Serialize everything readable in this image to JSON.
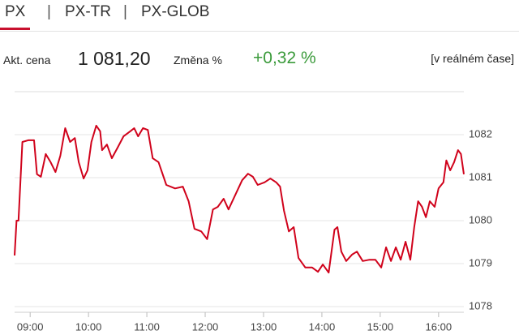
{
  "tabs": [
    "PX",
    "PX-TR",
    "PX-GLOB"
  ],
  "info": {
    "price_label": "Akt. cena",
    "price": "1 081,20",
    "change_label": "Změna %",
    "change": "+0,32 %",
    "realtime": "[v reálném čase]"
  },
  "chart_data": {
    "type": "line",
    "color": "#d0021b",
    "x": [
      "08:44",
      "08:46",
      "08:48",
      "08:52",
      "08:58",
      "09:04",
      "09:07",
      "09:11",
      "09:16",
      "09:21",
      "09:26",
      "09:31",
      "09:36",
      "09:41",
      "09:46",
      "09:50",
      "09:55",
      "09:59",
      "10:03",
      "10:08",
      "10:12",
      "10:14",
      "10:19",
      "10:24",
      "10:30",
      "10:36",
      "10:43",
      "10:47",
      "10:51",
      "10:56",
      "11:01",
      "11:06",
      "11:12",
      "11:20",
      "11:29",
      "11:37",
      "11:43",
      "11:49",
      "11:56",
      "12:02",
      "12:08",
      "12:13",
      "12:19",
      "12:24",
      "12:31",
      "12:38",
      "12:44",
      "12:49",
      "12:54",
      "13:01",
      "13:07",
      "13:13",
      "13:17",
      "13:21",
      "13:26",
      "13:31",
      "13:36",
      "13:43",
      "13:50",
      "13:56",
      "14:01",
      "14:07",
      "14:13",
      "14:16",
      "14:20",
      "14:25",
      "14:31",
      "14:36",
      "14:42",
      "14:49",
      "14:55",
      "15:01",
      "15:06",
      "15:11",
      "15:16",
      "15:21",
      "15:26",
      "15:31",
      "15:35",
      "15:39",
      "15:43",
      "15:47",
      "15:51",
      "15:56",
      "16:00",
      "16:05",
      "16:08",
      "16:12",
      "16:16",
      "16:20",
      "16:23",
      "16:26"
    ],
    "values": [
      1079.19,
      1080,
      1080,
      1081.83,
      1081.87,
      1081.87,
      1081.08,
      1081.02,
      1081.55,
      1081.36,
      1081.13,
      1081.51,
      1082.15,
      1081.83,
      1081.92,
      1081.36,
      1080.98,
      1081.17,
      1081.83,
      1082.21,
      1082.08,
      1081.64,
      1081.77,
      1081.45,
      1081.7,
      1081.96,
      1082.08,
      1082.15,
      1081.96,
      1082.15,
      1082.11,
      1081.45,
      1081.36,
      1080.83,
      1080.75,
      1080.79,
      1080.45,
      1079.81,
      1079.75,
      1079.57,
      1080.26,
      1080.32,
      1080.51,
      1080.26,
      1080.6,
      1080.94,
      1081.09,
      1081.02,
      1080.83,
      1080.89,
      1080.98,
      1080.89,
      1080.79,
      1080.23,
      1079.75,
      1079.85,
      1079.13,
      1078.91,
      1078.91,
      1078.81,
      1078.98,
      1078.79,
      1079.79,
      1079.85,
      1079.28,
      1079.06,
      1079.21,
      1079.28,
      1079.06,
      1079.09,
      1079.09,
      1078.91,
      1079.38,
      1079.06,
      1079.38,
      1079.09,
      1079.51,
      1079.09,
      1079.85,
      1080.45,
      1080.32,
      1080.08,
      1080.45,
      1080.32,
      1080.75,
      1080.89,
      1081.4,
      1081.17,
      1081.36,
      1081.64,
      1081.55,
      1081.08
    ],
    "xlim": [
      "08:44",
      "16:26"
    ],
    "xticks": [
      "09:00",
      "10:00",
      "11:00",
      "12:00",
      "13:00",
      "14:00",
      "15:00",
      "16:00"
    ],
    "ylim": [
      1078,
      1083
    ],
    "yticks": [
      1078,
      1079,
      1080,
      1081,
      1082
    ],
    "grid": true
  }
}
